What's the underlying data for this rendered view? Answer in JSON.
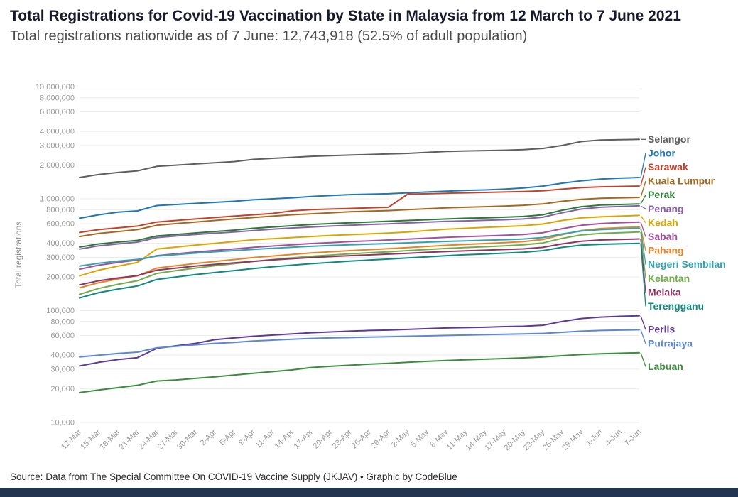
{
  "footer": {
    "source": "Source: Data from The Special Committee On COVID-19 Vaccine Supply (JKJAV) • Graphic by CodeBlue",
    "bar_color": "#213550"
  },
  "chart_data": {
    "type": "line",
    "title": "Total Registrations for Covid-19 Vaccination by State in Malaysia from 12 March to 7 June 2021",
    "subtitle": "Total registrations nationwide as of 7 June: 12,743,918 (52.5% of adult population)",
    "ylabel": "Total registrations",
    "xlabel": "",
    "y_scale": "log",
    "ylim": [
      10000,
      10000000
    ],
    "grid": "horizontal",
    "legend_position": "right",
    "y_ticks": [
      {
        "v": 10000,
        "label": "10,000"
      },
      {
        "v": 20000,
        "label": "20,000"
      },
      {
        "v": 30000,
        "label": "30,000"
      },
      {
        "v": 40000,
        "label": "40,000"
      },
      {
        "v": 60000,
        "label": "60,000"
      },
      {
        "v": 80000,
        "label": "80,000"
      },
      {
        "v": 100000,
        "label": "100,000"
      },
      {
        "v": 200000,
        "label": "200,000"
      },
      {
        "v": 300000,
        "label": "300,000"
      },
      {
        "v": 400000,
        "label": "400,000"
      },
      {
        "v": 600000,
        "label": "600,000"
      },
      {
        "v": 800000,
        "label": "800,000"
      },
      {
        "v": 1000000,
        "label": "1,000,000"
      },
      {
        "v": 2000000,
        "label": "2,000,000"
      },
      {
        "v": 3000000,
        "label": "3,000,000"
      },
      {
        "v": 4000000,
        "label": "4,000,000"
      },
      {
        "v": 6000000,
        "label": "6,000,000"
      },
      {
        "v": 8000000,
        "label": "8,000,000"
      },
      {
        "v": 10000000,
        "label": "10,000,000"
      }
    ],
    "x": [
      "12-Mar",
      "15-Mar",
      "18-Mar",
      "21-Mar",
      "24-Mar",
      "27-Mar",
      "30-Mar",
      "2-Apr",
      "5-Apr",
      "8-Apr",
      "11-Apr",
      "14-Apr",
      "17-Apr",
      "20-Apr",
      "23-Apr",
      "26-Apr",
      "29-Apr",
      "2-May",
      "5-May",
      "8-May",
      "11-May",
      "14-May",
      "17-May",
      "20-May",
      "23-May",
      "26-May",
      "29-May",
      "1-Jun",
      "4-Jun",
      "7-Jun"
    ],
    "series": [
      {
        "name": "Selangor",
        "color": "#5f5f5f",
        "values": [
          1550000,
          1650000,
          1720000,
          1780000,
          1950000,
          2000000,
          2050000,
          2100000,
          2150000,
          2250000,
          2300000,
          2350000,
          2400000,
          2430000,
          2460000,
          2490000,
          2520000,
          2550000,
          2600000,
          2650000,
          2680000,
          2700000,
          2720000,
          2750000,
          2820000,
          3000000,
          3250000,
          3350000,
          3380000,
          3400000
        ]
      },
      {
        "name": "Johor",
        "color": "#1f77b4",
        "values": [
          670000,
          720000,
          760000,
          780000,
          870000,
          890000,
          910000,
          930000,
          950000,
          980000,
          1000000,
          1020000,
          1050000,
          1070000,
          1090000,
          1100000,
          1110000,
          1130000,
          1150000,
          1170000,
          1190000,
          1200000,
          1220000,
          1250000,
          1300000,
          1380000,
          1450000,
          1500000,
          1530000,
          1550000
        ]
      },
      {
        "name": "Sarawak",
        "color": "#c4422b",
        "values": [
          500000,
          530000,
          550000,
          570000,
          620000,
          640000,
          660000,
          680000,
          700000,
          720000,
          740000,
          780000,
          800000,
          810000,
          820000,
          830000,
          840000,
          1100000,
          1110000,
          1120000,
          1130000,
          1140000,
          1150000,
          1160000,
          1180000,
          1220000,
          1260000,
          1280000,
          1290000,
          1300000
        ]
      },
      {
        "name": "Kuala Lumpur",
        "color": "#a4691f",
        "values": [
          460000,
          490000,
          510000,
          530000,
          580000,
          600000,
          620000,
          640000,
          660000,
          680000,
          700000,
          720000,
          735000,
          750000,
          765000,
          775000,
          785000,
          800000,
          815000,
          830000,
          840000,
          850000,
          860000,
          875000,
          900000,
          950000,
          990000,
          1010000,
          1020000,
          1030000
        ]
      },
      {
        "name": "Perak",
        "color": "#2c7a35",
        "values": [
          370000,
          395000,
          410000,
          425000,
          465000,
          480000,
          495000,
          510000,
          525000,
          545000,
          560000,
          575000,
          590000,
          600000,
          610000,
          620000,
          630000,
          640000,
          650000,
          660000,
          670000,
          675000,
          685000,
          695000,
          720000,
          790000,
          850000,
          880000,
          890000,
          900000
        ]
      },
      {
        "name": "Penang",
        "color": "#8661a8",
        "values": [
          355000,
          380000,
          395000,
          410000,
          450000,
          465000,
          480000,
          492000,
          505000,
          520000,
          535000,
          548000,
          560000,
          570000,
          580000,
          590000,
          598000,
          608000,
          618000,
          628000,
          635000,
          642000,
          650000,
          660000,
          685000,
          750000,
          810000,
          840000,
          855000,
          865000
        ]
      },
      {
        "name": "Kedah",
        "color": "#dba500",
        "values": [
          205000,
          230000,
          250000,
          270000,
          355000,
          370000,
          385000,
          400000,
          415000,
          430000,
          440000,
          450000,
          460000,
          470000,
          478000,
          486000,
          494000,
          505000,
          520000,
          535000,
          545000,
          555000,
          565000,
          575000,
          595000,
          640000,
          675000,
          690000,
          700000,
          710000
        ]
      },
      {
        "name": "Sabah",
        "color": "#a4509e",
        "values": [
          235000,
          255000,
          270000,
          283000,
          310000,
          322000,
          334000,
          345000,
          356000,
          368000,
          378000,
          388000,
          398000,
          406000,
          414000,
          421000,
          428000,
          436000,
          444000,
          452000,
          459000,
          465000,
          472000,
          480000,
          497000,
          540000,
          580000,
          600000,
          612000,
          620000
        ]
      },
      {
        "name": "Pahang",
        "color": "#e58429",
        "values": [
          160000,
          178000,
          192000,
          205000,
          240000,
          252000,
          264000,
          275000,
          286000,
          298000,
          308000,
          318000,
          328000,
          336000,
          344000,
          351000,
          358000,
          366000,
          375000,
          384000,
          391000,
          398000,
          406000,
          415000,
          432000,
          478000,
          520000,
          542000,
          552000,
          560000
        ]
      },
      {
        "name": "Negeri Sembilan",
        "color": "#33a3b0",
        "values": [
          250000,
          265000,
          277000,
          287000,
          307000,
          317000,
          327000,
          336000,
          344000,
          353000,
          361000,
          369000,
          376000,
          382000,
          388000,
          393000,
          398000,
          404000,
          410000,
          416000,
          421000,
          426000,
          431000,
          437000,
          450000,
          485000,
          515000,
          530000,
          538000,
          545000
        ]
      },
      {
        "name": "Kelantan",
        "color": "#71ad49",
        "values": [
          140000,
          158000,
          172000,
          185000,
          215000,
          228000,
          240000,
          252000,
          263000,
          275000,
          286000,
          296000,
          306000,
          314000,
          322000,
          329000,
          336000,
          344000,
          352000,
          360000,
          367000,
          373000,
          380000,
          388000,
          403000,
          443000,
          475000,
          490000,
          498000,
          505000
        ]
      },
      {
        "name": "Melaka",
        "color": "#8f3563",
        "values": [
          170000,
          185000,
          196000,
          206000,
          230000,
          240000,
          250000,
          259000,
          267000,
          276000,
          284000,
          291000,
          298000,
          304000,
          310000,
          315000,
          320000,
          326000,
          332000,
          338000,
          343000,
          347000,
          352000,
          357000,
          368000,
          395000,
          418000,
          428000,
          433000,
          438000
        ]
      },
      {
        "name": "Terengganu",
        "color": "#0f8a7e",
        "values": [
          130000,
          145000,
          156000,
          166000,
          190000,
          200000,
          210000,
          219000,
          228000,
          238000,
          247000,
          255000,
          263000,
          270000,
          277000,
          283000,
          289000,
          296000,
          303000,
          310000,
          316000,
          321000,
          327000,
          333000,
          344000,
          368000,
          385000,
          392000,
          396000,
          400000
        ]
      },
      {
        "name": "Perlis",
        "color": "#5c3a96",
        "values": [
          32000,
          34500,
          36500,
          38000,
          46000,
          48500,
          51000,
          55000,
          57000,
          59000,
          60500,
          62000,
          63500,
          64500,
          65500,
          66500,
          67000,
          68000,
          69000,
          70000,
          70500,
          71000,
          72000,
          72500,
          74000,
          80000,
          85000,
          87500,
          89000,
          90000
        ]
      },
      {
        "name": "Putrajaya",
        "color": "#5d87d1",
        "values": [
          38500,
          40000,
          41500,
          42500,
          46500,
          48000,
          49500,
          51000,
          52000,
          53500,
          54500,
          55500,
          56500,
          57000,
          57500,
          58000,
          58500,
          59000,
          59500,
          60000,
          60500,
          61000,
          61500,
          62000,
          62500,
          64000,
          65500,
          66500,
          67000,
          67500
        ]
      },
      {
        "name": "Labuan",
        "color": "#3c8c40",
        "values": [
          18500,
          19500,
          20500,
          21500,
          23500,
          24000,
          24800,
          25600,
          26500,
          27500,
          28500,
          29500,
          31000,
          31800,
          32500,
          33200,
          33800,
          34500,
          35200,
          35800,
          36300,
          36800,
          37300,
          37800,
          38500,
          39500,
          40500,
          41200,
          41600,
          42000
        ]
      }
    ]
  }
}
